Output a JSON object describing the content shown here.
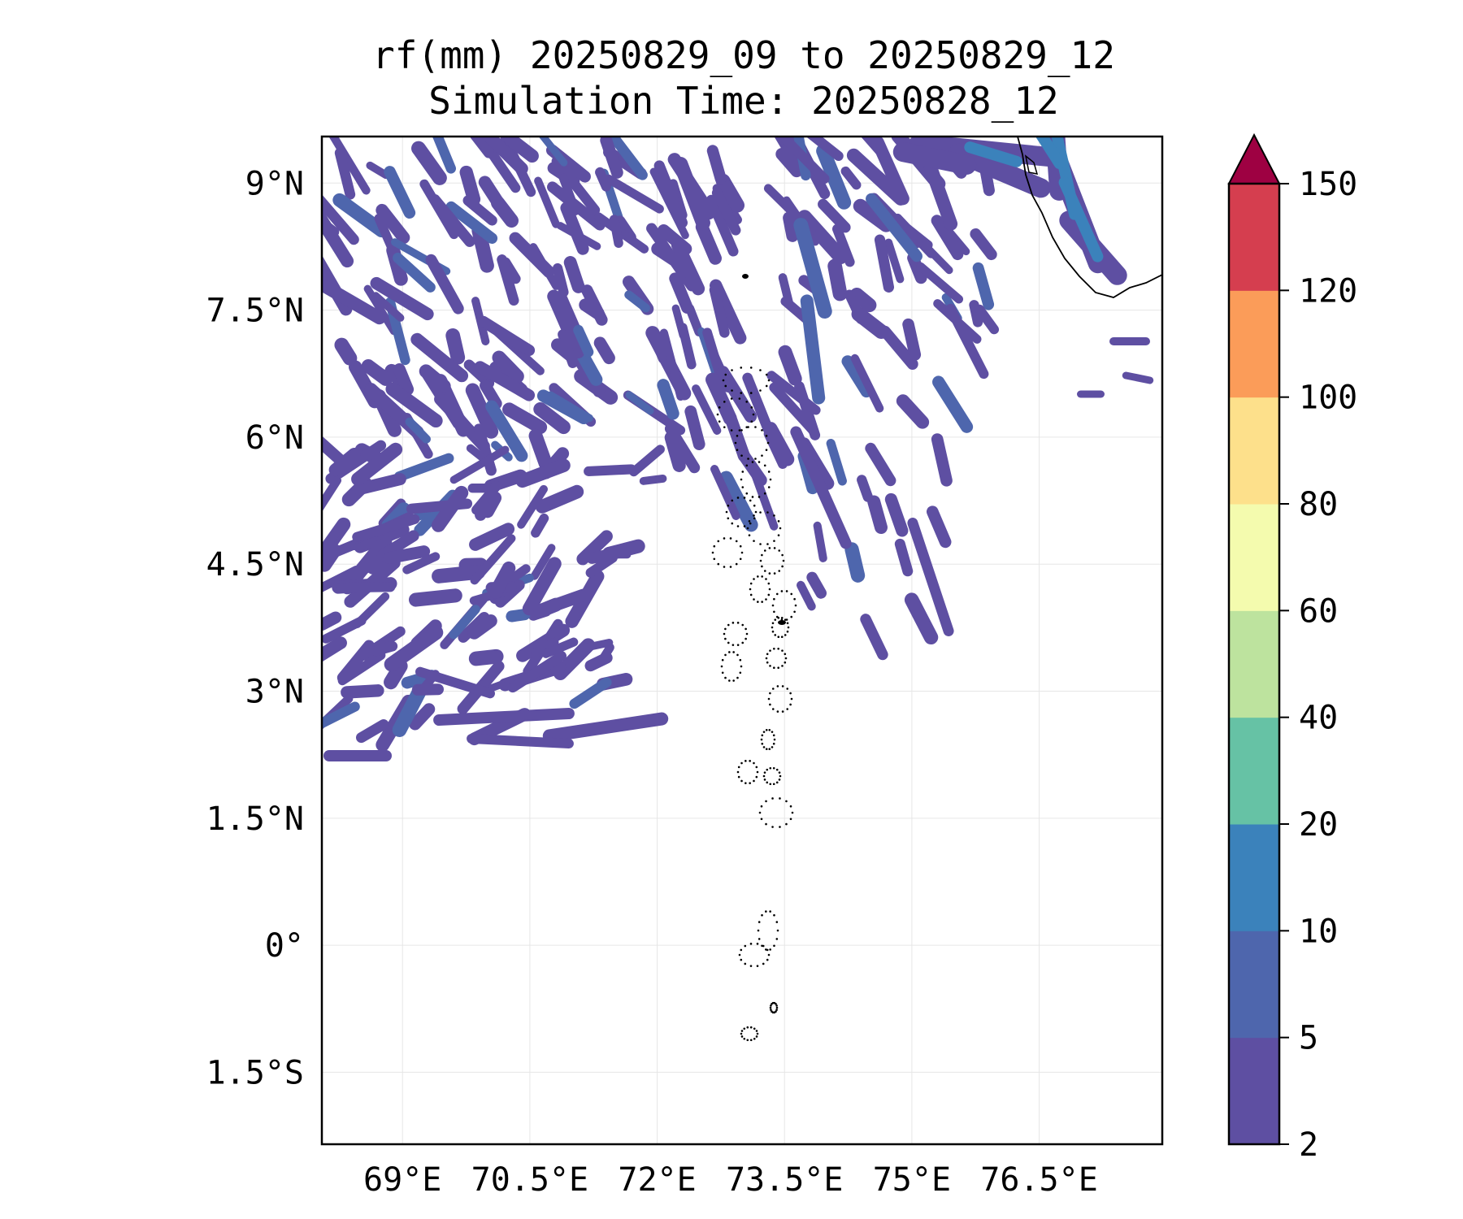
{
  "title": {
    "line1": "rf(mm) 20250829_09 to 20250829_12",
    "line2": "Simulation Time: 20250828_12"
  },
  "map": {
    "lon_ticks": [
      {
        "value": 69,
        "label": "69°E"
      },
      {
        "value": 70.5,
        "label": "70.5°E"
      },
      {
        "value": 72,
        "label": "72°E"
      },
      {
        "value": 73.5,
        "label": "73.5°E"
      },
      {
        "value": 75,
        "label": "75°E"
      },
      {
        "value": 76.5,
        "label": "76.5°E"
      }
    ],
    "lat_ticks": [
      {
        "value": 9,
        "label": "9°N"
      },
      {
        "value": 7.5,
        "label": "7.5°N"
      },
      {
        "value": 6,
        "label": "6°N"
      },
      {
        "value": 4.5,
        "label": "4.5°N"
      },
      {
        "value": 3,
        "label": "3°N"
      },
      {
        "value": 1.5,
        "label": "1.5°N"
      },
      {
        "value": 0,
        "label": "0°"
      },
      {
        "value": -1.5,
        "label": "1.5°S"
      }
    ],
    "lon_range": [
      68.05,
      77.95
    ],
    "lat_range": [
      -2.35,
      9.55
    ],
    "grid": true
  },
  "colorbar": {
    "levels": [
      {
        "label": "2",
        "color": "#5e4fa2"
      },
      {
        "label": "5",
        "color": "#4e66ad"
      },
      {
        "label": "10",
        "color": "#3b82bb"
      },
      {
        "label": "20",
        "color": "#66c2a5"
      },
      {
        "label": "40",
        "color": "#bde39e"
      },
      {
        "label": "60",
        "color": "#f4fbae"
      },
      {
        "label": "80",
        "color": "#fde08b"
      },
      {
        "label": "100",
        "color": "#fb9c59"
      },
      {
        "label": "120",
        "color": "#d53e4f"
      },
      {
        "label": "150",
        "color": "#9e0142"
      }
    ],
    "extend": "max"
  }
}
